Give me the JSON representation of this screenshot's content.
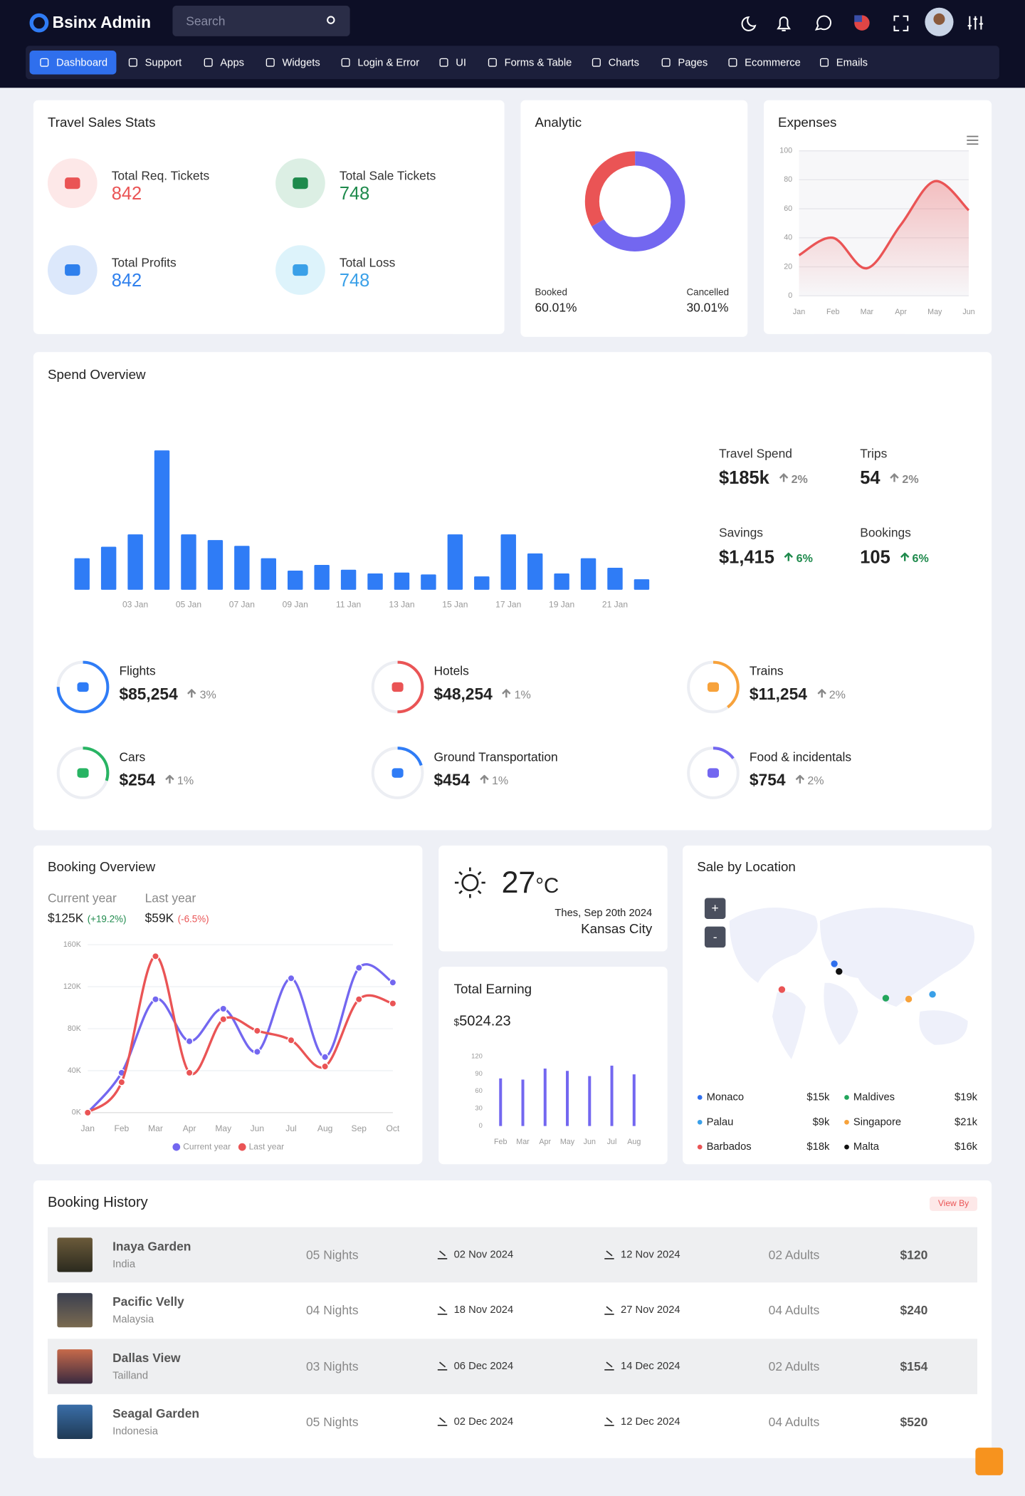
{
  "header": {
    "brand": "Bsinx Admin",
    "search_placeholder": "Search"
  },
  "nav": [
    "Dashboard",
    "Support",
    "Apps",
    "Widgets",
    "Login & Error",
    "UI",
    "Forms & Table",
    "Charts",
    "Pages",
    "Ecommerce",
    "Emails"
  ],
  "travel_sales": {
    "title": "Travel Sales Stats",
    "items": [
      {
        "label": "Total Req. Tickets",
        "value": "842"
      },
      {
        "label": "Total Sale Tickets",
        "value": "748"
      },
      {
        "label": "Total Profits",
        "value": "842"
      },
      {
        "label": "Total Loss",
        "value": "748"
      }
    ]
  },
  "spend_stats": [
    {
      "label": "Travel Spend",
      "value": "$185k",
      "change": "2%"
    },
    {
      "label": "Trips",
      "value": "54",
      "change": "2%"
    },
    {
      "label": "Savings",
      "value": "$1,415",
      "change": "6%"
    },
    {
      "label": "Bookings",
      "value": "105",
      "change": "6%"
    }
  ],
  "spend_categories": [
    {
      "label": "Flights",
      "value": "$85,254",
      "change": "3%",
      "progress": 75,
      "color": "#2f7cf6"
    },
    {
      "label": "Hotels",
      "value": "$48,254",
      "change": "1%",
      "progress": 50,
      "color": "#ea5455"
    },
    {
      "label": "Trains",
      "value": "$11,254",
      "change": "2%",
      "progress": 40,
      "color": "#f7a23b"
    },
    {
      "label": "Cars",
      "value": "$254",
      "change": "1%",
      "progress": 30,
      "color": "#28b463"
    },
    {
      "label": "Ground Transportation",
      "value": "$454",
      "change": "1%",
      "progress": 20,
      "color": "#2f7cf6"
    },
    {
      "label": "Food & incidentals",
      "value": "$754",
      "change": "2%",
      "progress": 15,
      "color": "#7367f0"
    }
  ],
  "booking_summary": {
    "current_value": "$125K",
    "current_change": "(+19.2%)",
    "last_value": "$59K",
    "last_change": "(-6.5%)"
  },
  "weather": {
    "temperature": "27",
    "unit": "°C",
    "date": "Thes, Sep 20th 2024",
    "city": "Kansas City"
  },
  "total_earning": {
    "title": "Total Earning",
    "currency": "$",
    "amount": "5024.23"
  },
  "sale_by_location": {
    "title": "Sale by Location",
    "zoom_in": "+",
    "zoom_out": "-",
    "locations": [
      {
        "name": "Monaco",
        "value": "$15k",
        "color": "#2f6fed"
      },
      {
        "name": "Maldives",
        "value": "$19k",
        "color": "#22a55b"
      },
      {
        "name": "Palau",
        "value": "$9k",
        "color": "#3aa0e8"
      },
      {
        "name": "Singapore",
        "value": "$21k",
        "color": "#f7a23b"
      },
      {
        "name": "Barbados",
        "value": "$18k",
        "color": "#ea5455"
      },
      {
        "name": "Malta",
        "value": "$16k",
        "color": "#111111"
      }
    ]
  },
  "booking_history": {
    "title": "Booking History",
    "button": "View By",
    "rows": [
      {
        "name": "Inaya Garden",
        "country": "India",
        "nights": "05 Nights",
        "check_in": "02 Nov 2024",
        "check_out": "12 Nov 2024",
        "guests": "02 Adults",
        "price": "$120"
      },
      {
        "name": "Pacific Velly",
        "country": "Malaysia",
        "nights": "04 Nights",
        "check_in": "18 Nov 2024",
        "check_out": "27 Nov 2024",
        "guests": "04 Adults",
        "price": "$240"
      },
      {
        "name": "Dallas View",
        "country": "Tailland",
        "nights": "03 Nights",
        "check_in": "06 Dec 2024",
        "check_out": "14 Dec 2024",
        "guests": "02 Adults",
        "price": "$154"
      },
      {
        "name": "Seagal Garden",
        "country": "Indonesia",
        "nights": "05 Nights",
        "check_in": "02 Dec 2024",
        "check_out": "12 Dec 2024",
        "guests": "04 Adults",
        "price": "$520"
      }
    ]
  },
  "chart_data": [
    {
      "type": "donut",
      "title": "Analytic",
      "categories": [
        "Booked",
        "Cancelled"
      ],
      "values": [
        60.01,
        30.01
      ],
      "value_labels": [
        "60.01%",
        "30.01%"
      ],
      "colors": [
        "#7367f0",
        "#ea5455"
      ]
    },
    {
      "type": "line",
      "title": "Expenses",
      "categories": [
        "Jan",
        "Feb",
        "Mar",
        "Apr",
        "May",
        "Jun"
      ],
      "values": [
        28,
        40,
        19,
        49,
        79,
        59
      ],
      "color": "#ea5455",
      "area": true,
      "ylim": [
        0,
        100
      ],
      "yticks": [
        0,
        20,
        40,
        60,
        80,
        100
      ],
      "grid": true
    },
    {
      "type": "bar",
      "title": "Spend Overview",
      "categories": [
        null,
        null,
        "03 Jan",
        null,
        "05 Jan",
        null,
        "07 Jan",
        null,
        "09 Jan",
        null,
        "11 Jan",
        null,
        "13 Jan",
        null,
        "15 Jan",
        null,
        "17 Jan",
        null,
        "19 Jan",
        null,
        "21 Jan",
        null
      ],
      "values": [
        33,
        45,
        58,
        146,
        58,
        52,
        46,
        33,
        20,
        26,
        21,
        17,
        18,
        16,
        58,
        14,
        58,
        38,
        17,
        33,
        23,
        11
      ],
      "color": "#2f7cf6"
    },
    {
      "type": "line",
      "title": "Booking Overview",
      "categories": [
        "Jan",
        "Feb",
        "Mar",
        "Apr",
        "May",
        "Jun",
        "Jul",
        "Aug",
        "Sep",
        "Oct"
      ],
      "series": [
        {
          "name": "Current year",
          "color": "#7367f0",
          "values": [
            0,
            38000,
            108000,
            68000,
            99000,
            58000,
            128000,
            53000,
            138000,
            124000
          ]
        },
        {
          "name": "Last year",
          "color": "#ea5455",
          "values": [
            0,
            29000,
            149000,
            38000,
            89000,
            78000,
            69000,
            44000,
            108000,
            104000
          ]
        }
      ],
      "ylim": [
        0,
        160000
      ],
      "yticks": [
        {
          "value": 0,
          "label": "0K"
        },
        {
          "value": 40000,
          "label": "40K"
        },
        {
          "value": 80000,
          "label": "80K"
        },
        {
          "value": 120000,
          "label": "120K"
        },
        {
          "value": 160000,
          "label": "160K"
        }
      ],
      "grid": true,
      "legend": "bottom"
    },
    {
      "type": "bar",
      "categories": [
        "Feb",
        "Mar",
        "Apr",
        "May",
        "Jun",
        "Jul",
        "Aug"
      ],
      "values": [
        82,
        80,
        99,
        95,
        86,
        104,
        89
      ],
      "color": "#7367f0",
      "ylim": [
        0,
        120
      ],
      "yticks": [
        0,
        30,
        60,
        90,
        120
      ]
    }
  ]
}
